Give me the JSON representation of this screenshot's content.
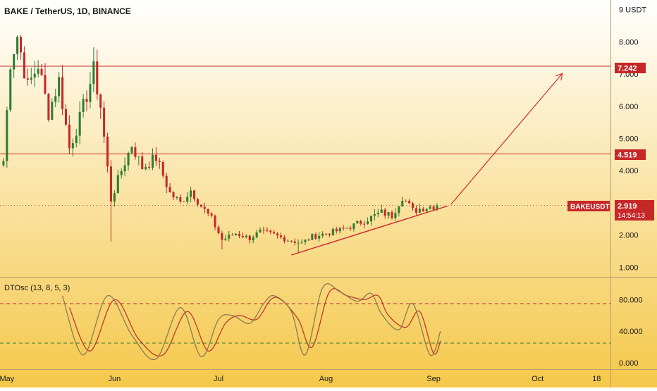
{
  "header": {
    "title": "BAKE / TetherUS, 1D, BINANCE"
  },
  "colors": {
    "bg_top": "#ffffff",
    "bg_bottom": "#f5c84a",
    "up": "#2e7d32",
    "down": "#c62828",
    "level_line": "#c62828",
    "arrow": "#d32f2f",
    "osc_k": "#8a7a55",
    "osc_d": "#c0392b",
    "osc_upper": "#c62828",
    "osc_lower": "#2e7d32"
  },
  "axis": {
    "unit": "USDT",
    "price_ticks": [
      "9",
      "8.000",
      "7.000",
      "6.000",
      "5.000",
      "4.000",
      "2.000",
      "1.000"
    ],
    "osc_ticks": [
      "80.000",
      "40.000",
      "0.000"
    ],
    "time_ticks": [
      "May",
      "Jun",
      "Jul",
      "Aug",
      "Sep",
      "Oct",
      "18"
    ]
  },
  "price_labels": {
    "level_high": "7.242",
    "level_mid": "4.519",
    "symbol": "BAKEUSDT",
    "last": "2.919",
    "countdown": "14:54:13"
  },
  "oscillator": {
    "title": "DTOsc (13, 8, 5, 3)"
  },
  "chart_data": {
    "type": "candlestick",
    "title": "BAKE / TetherUS, 1D, BINANCE",
    "x_range": [
      "2021-04-29",
      "2021-10-22"
    ],
    "y_range": [
      0.7,
      9.3
    ],
    "levels": [
      7.242,
      4.519
    ],
    "last_price": 2.919,
    "anchors": [
      [
        "2021-04-30",
        4.3
      ],
      [
        "2021-05-02",
        7.4
      ],
      [
        "2021-05-04",
        8.2
      ],
      [
        "2021-05-07",
        6.6
      ],
      [
        "2021-05-10",
        7.3
      ],
      [
        "2021-05-13",
        5.8
      ],
      [
        "2021-05-16",
        6.8
      ],
      [
        "2021-05-19",
        4.7
      ],
      [
        "2021-05-22",
        5.6
      ],
      [
        "2021-05-26",
        7.1
      ],
      [
        "2021-05-28",
        6.0
      ],
      [
        "2021-05-31",
        3.1
      ],
      [
        "2021-06-03",
        4.0
      ],
      [
        "2021-06-06",
        4.8
      ],
      [
        "2021-06-09",
        4.1
      ],
      [
        "2021-06-13",
        4.4
      ],
      [
        "2021-06-17",
        3.3
      ],
      [
        "2021-06-20",
        3.0
      ],
      [
        "2021-06-23",
        3.4
      ],
      [
        "2021-06-26",
        2.9
      ],
      [
        "2021-06-29",
        2.5
      ],
      [
        "2021-07-02",
        1.85
      ],
      [
        "2021-07-06",
        2.05
      ],
      [
        "2021-07-10",
        1.9
      ],
      [
        "2021-07-13",
        2.1
      ],
      [
        "2021-07-17",
        2.0
      ],
      [
        "2021-07-21",
        1.85
      ],
      [
        "2021-07-25",
        1.75
      ],
      [
        "2021-07-28",
        1.95
      ],
      [
        "2021-08-01",
        2.05
      ],
      [
        "2021-08-05",
        2.15
      ],
      [
        "2021-08-09",
        2.3
      ],
      [
        "2021-08-13",
        2.5
      ],
      [
        "2021-08-17",
        2.7
      ],
      [
        "2021-08-20",
        2.6
      ],
      [
        "2021-08-23",
        3.2
      ],
      [
        "2021-08-26",
        2.75
      ],
      [
        "2021-08-29",
        2.85
      ],
      [
        "2021-09-02",
        2.919
      ]
    ],
    "lows": [
      [
        "2021-05-31",
        1.8
      ],
      [
        "2021-07-02",
        1.55
      ],
      [
        "2021-07-24",
        1.45
      ]
    ],
    "trendline": [
      [
        "2021-07-22",
        1.38
      ],
      [
        "2021-09-05",
        2.9
      ]
    ],
    "projection": [
      [
        "2021-09-06",
        2.95
      ],
      [
        "2021-10-08",
        7.0
      ]
    ],
    "oscillator": {
      "name": "DTOsc (13, 8, 5, 3)",
      "y_range": [
        -8,
        108
      ],
      "levels": [
        75,
        25
      ],
      "k": [
        [
          "2021-05-17",
          85
        ],
        [
          "2021-05-23",
          10
        ],
        [
          "2021-05-30",
          85
        ],
        [
          "2021-06-06",
          35
        ],
        [
          "2021-06-13",
          5
        ],
        [
          "2021-06-20",
          70
        ],
        [
          "2021-06-26",
          8
        ],
        [
          "2021-07-01",
          55
        ],
        [
          "2021-07-05",
          60
        ],
        [
          "2021-07-10",
          50
        ],
        [
          "2021-07-14",
          75
        ],
        [
          "2021-07-17",
          85
        ],
        [
          "2021-07-22",
          65
        ],
        [
          "2021-07-26",
          10
        ],
        [
          "2021-07-31",
          95
        ],
        [
          "2021-08-05",
          90
        ],
        [
          "2021-08-10",
          78
        ],
        [
          "2021-08-14",
          88
        ],
        [
          "2021-08-17",
          62
        ],
        [
          "2021-08-22",
          42
        ],
        [
          "2021-08-26",
          75
        ],
        [
          "2021-08-31",
          10
        ],
        [
          "2021-09-03",
          40
        ]
      ],
      "d": [
        [
          "2021-05-19",
          70
        ],
        [
          "2021-05-25",
          15
        ],
        [
          "2021-06-01",
          80
        ],
        [
          "2021-06-08",
          30
        ],
        [
          "2021-06-15",
          10
        ],
        [
          "2021-06-22",
          65
        ],
        [
          "2021-06-28",
          15
        ],
        [
          "2021-07-03",
          50
        ],
        [
          "2021-07-07",
          60
        ],
        [
          "2021-07-12",
          55
        ],
        [
          "2021-07-16",
          80
        ],
        [
          "2021-07-19",
          80
        ],
        [
          "2021-07-24",
          55
        ],
        [
          "2021-07-28",
          20
        ],
        [
          "2021-08-02",
          90
        ],
        [
          "2021-08-07",
          85
        ],
        [
          "2021-08-12",
          80
        ],
        [
          "2021-08-16",
          85
        ],
        [
          "2021-08-19",
          60
        ],
        [
          "2021-08-24",
          45
        ],
        [
          "2021-08-28",
          65
        ],
        [
          "2021-09-01",
          12
        ],
        [
          "2021-09-03",
          28
        ]
      ]
    }
  }
}
